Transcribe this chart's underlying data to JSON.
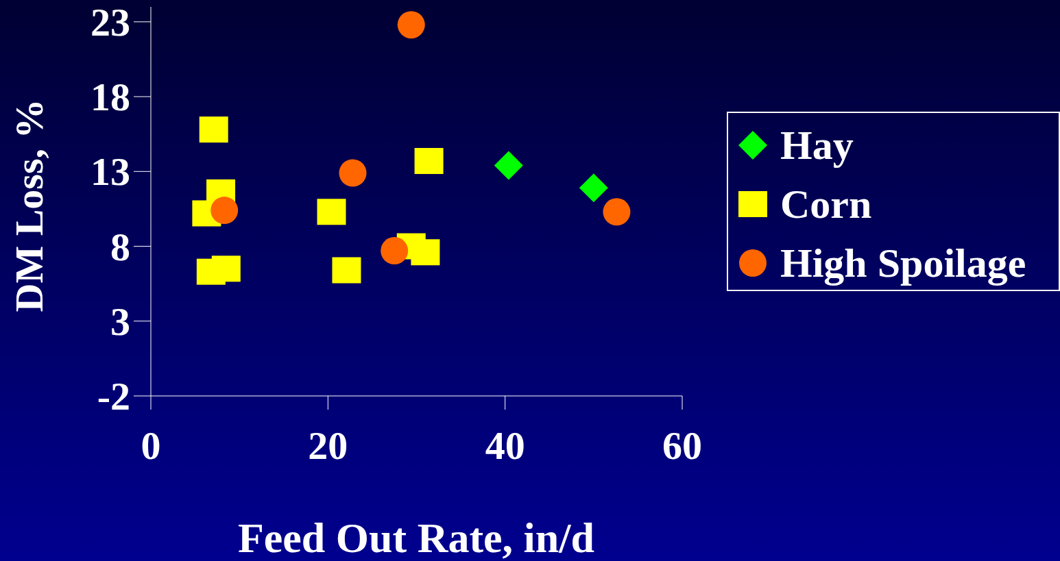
{
  "chart_data": {
    "type": "scatter",
    "xlabel": "Feed Out Rate, in/d",
    "ylabel": "DM Loss, %",
    "xlim": [
      0,
      60
    ],
    "xticks": [
      0,
      20,
      40,
      60
    ],
    "ylim": [
      -2,
      24
    ],
    "yticks": [
      -2,
      3,
      8,
      13,
      18,
      23
    ],
    "grid": false,
    "legend": "right",
    "series": [
      {
        "name": "Hay",
        "color": "#00ff00",
        "marker": "diamond",
        "x": [
          40.4,
          50.0
        ],
        "values": [
          13.4,
          11.9
        ]
      },
      {
        "name": "Corn",
        "color": "#ffff00",
        "marker": "square",
        "x": [
          7.1,
          7.9,
          6.3,
          6.8,
          8.5,
          20.4,
          22.1,
          29.4,
          31.0,
          31.4
        ],
        "values": [
          15.8,
          11.6,
          10.2,
          6.3,
          6.5,
          10.3,
          6.4,
          8.0,
          7.6,
          13.7
        ]
      },
      {
        "name": "High Spoilage",
        "color": "#ff6600",
        "marker": "circle",
        "x": [
          29.4,
          22.8,
          8.3,
          27.5,
          52.6
        ],
        "values": [
          22.8,
          12.9,
          10.4,
          7.7,
          10.3
        ]
      }
    ]
  }
}
